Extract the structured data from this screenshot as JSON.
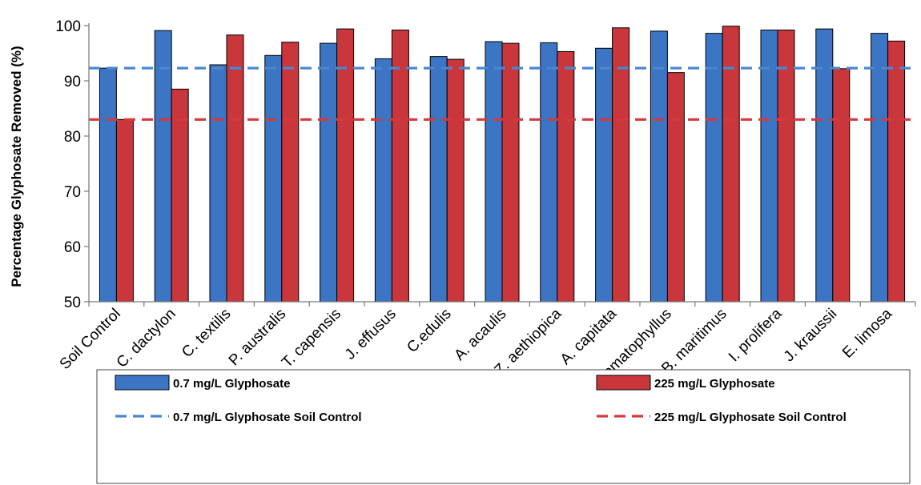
{
  "chart_data": {
    "type": "bar",
    "title": "",
    "xlabel": "",
    "ylabel": "Percentage Glyphosate Removed (%)",
    "ylim": [
      50,
      100
    ],
    "yticks": [
      50,
      60,
      70,
      80,
      90,
      100
    ],
    "grid": false,
    "legend_position": "bottom",
    "categories": [
      "Soil Control",
      "C. dactylon",
      "C. textilis",
      "P. australis",
      "T. capensis",
      "J. effusus",
      "C.edulis",
      "A. acaulis",
      "Z. aethiopica",
      "A. capitata",
      "J. lomatophyllus",
      "B. maritimus",
      "I. prolifera",
      "J. kraussii",
      "E. limosa"
    ],
    "series": [
      {
        "name": "0.7 mg/L Glyphosate",
        "color": "#3b75c3",
        "values": [
          92.3,
          99.1,
          92.9,
          94.6,
          96.8,
          94.0,
          94.4,
          97.1,
          96.9,
          95.9,
          99.0,
          98.6,
          99.2,
          99.4,
          98.6
        ]
      },
      {
        "name": "225 mg/L Glyphosate",
        "color": "#c9363b",
        "values": [
          83.0,
          88.5,
          98.3,
          97.0,
          99.4,
          99.2,
          93.9,
          96.8,
          95.3,
          99.6,
          91.5,
          99.9,
          99.2,
          92.2,
          97.2
        ]
      }
    ],
    "reference_lines": [
      {
        "name": "0.7 mg/L Glyphosate Soil Control",
        "value": 92.3,
        "color": "#4a86d0",
        "style": "dashed"
      },
      {
        "name": "225 mg/L Glyphosate Soil Control",
        "value": 83.0,
        "color": "#d5393b",
        "style": "dashed"
      }
    ]
  }
}
